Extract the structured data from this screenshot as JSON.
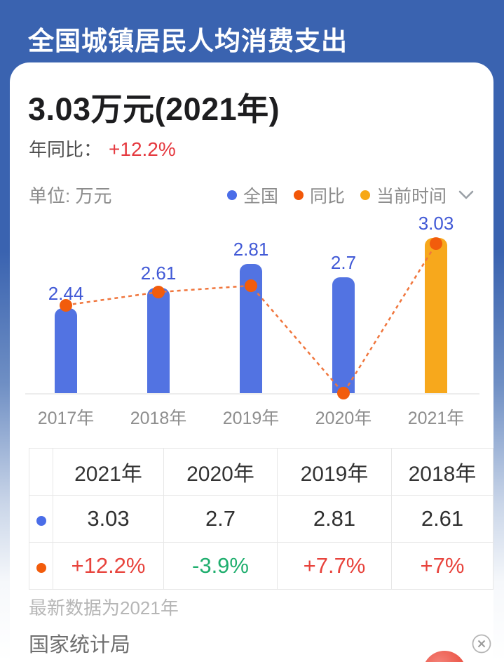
{
  "header": {
    "title": "全国城镇居民人均消费支出"
  },
  "summary": {
    "headline": "3.03万元(2021年)",
    "yoy_label": "年同比：",
    "yoy_value": "+12.2%",
    "yoy_value_color": "#e5393f",
    "unit_label": "单位: 万元"
  },
  "legend": {
    "items": [
      {
        "label": "全国",
        "color": "#4a6de8"
      },
      {
        "label": "同比",
        "color": "#f25708"
      },
      {
        "label": "当前时间",
        "color": "#f7a815"
      }
    ],
    "dropdown_icon": "chevron-down"
  },
  "chart_data": {
    "type": "bar",
    "title": "全国城镇居民人均消费支出",
    "unit": "万元",
    "categories": [
      "2017年",
      "2018年",
      "2019年",
      "2020年",
      "2021年"
    ],
    "series": [
      {
        "name": "全国",
        "type": "bar",
        "values": [
          2.44,
          2.61,
          2.81,
          2.7,
          3.03
        ],
        "labels": [
          "2.44",
          "2.61",
          "2.81",
          "2.7",
          "3.03"
        ],
        "colors": [
          "#5273e2",
          "#5273e2",
          "#5273e2",
          "#5273e2",
          "#f7a81c"
        ],
        "highlight_note": "2021年 bar shown in amber (当前时间)"
      },
      {
        "name": "同比",
        "type": "line",
        "style": "dashed",
        "color": "#f25c0c",
        "values_pct": [
          5.6,
          7,
          7.7,
          -3.9,
          12.2
        ],
        "labeled": [
          false,
          true,
          true,
          true,
          true
        ]
      }
    ],
    "grid": false,
    "legend_position": "top-right"
  },
  "table": {
    "headers": [
      "",
      "2021年",
      "2020年",
      "2019年",
      "2018年"
    ],
    "rows": [
      {
        "series": "全国",
        "dot_color": "#4a6de8",
        "cells": [
          "3.03",
          "2.7",
          "2.81",
          "2.61"
        ],
        "cell_colors": [
          "#2f2f2f",
          "#2f2f2f",
          "#2f2f2f",
          "#2f2f2f"
        ]
      },
      {
        "series": "同比",
        "dot_color": "#f25c0c",
        "cells": [
          "+12.2%",
          "-3.9%",
          "+7.7%",
          "+7%"
        ],
        "cell_colors": [
          "#e8433c",
          "#1fae6e",
          "#e8433c",
          "#e8433c"
        ]
      }
    ]
  },
  "footer": {
    "latest_note": "最新数据为2021年",
    "source": "国家统计局"
  },
  "colors": {
    "background_top": "#3a63b0",
    "bar_blue": "#5273e2",
    "bar_amber": "#f7a81c",
    "yoy_orange": "#f25c0c",
    "value_label_blue": "#4159d6",
    "negative_green": "#1fae6e",
    "positive_red": "#e8433c"
  }
}
